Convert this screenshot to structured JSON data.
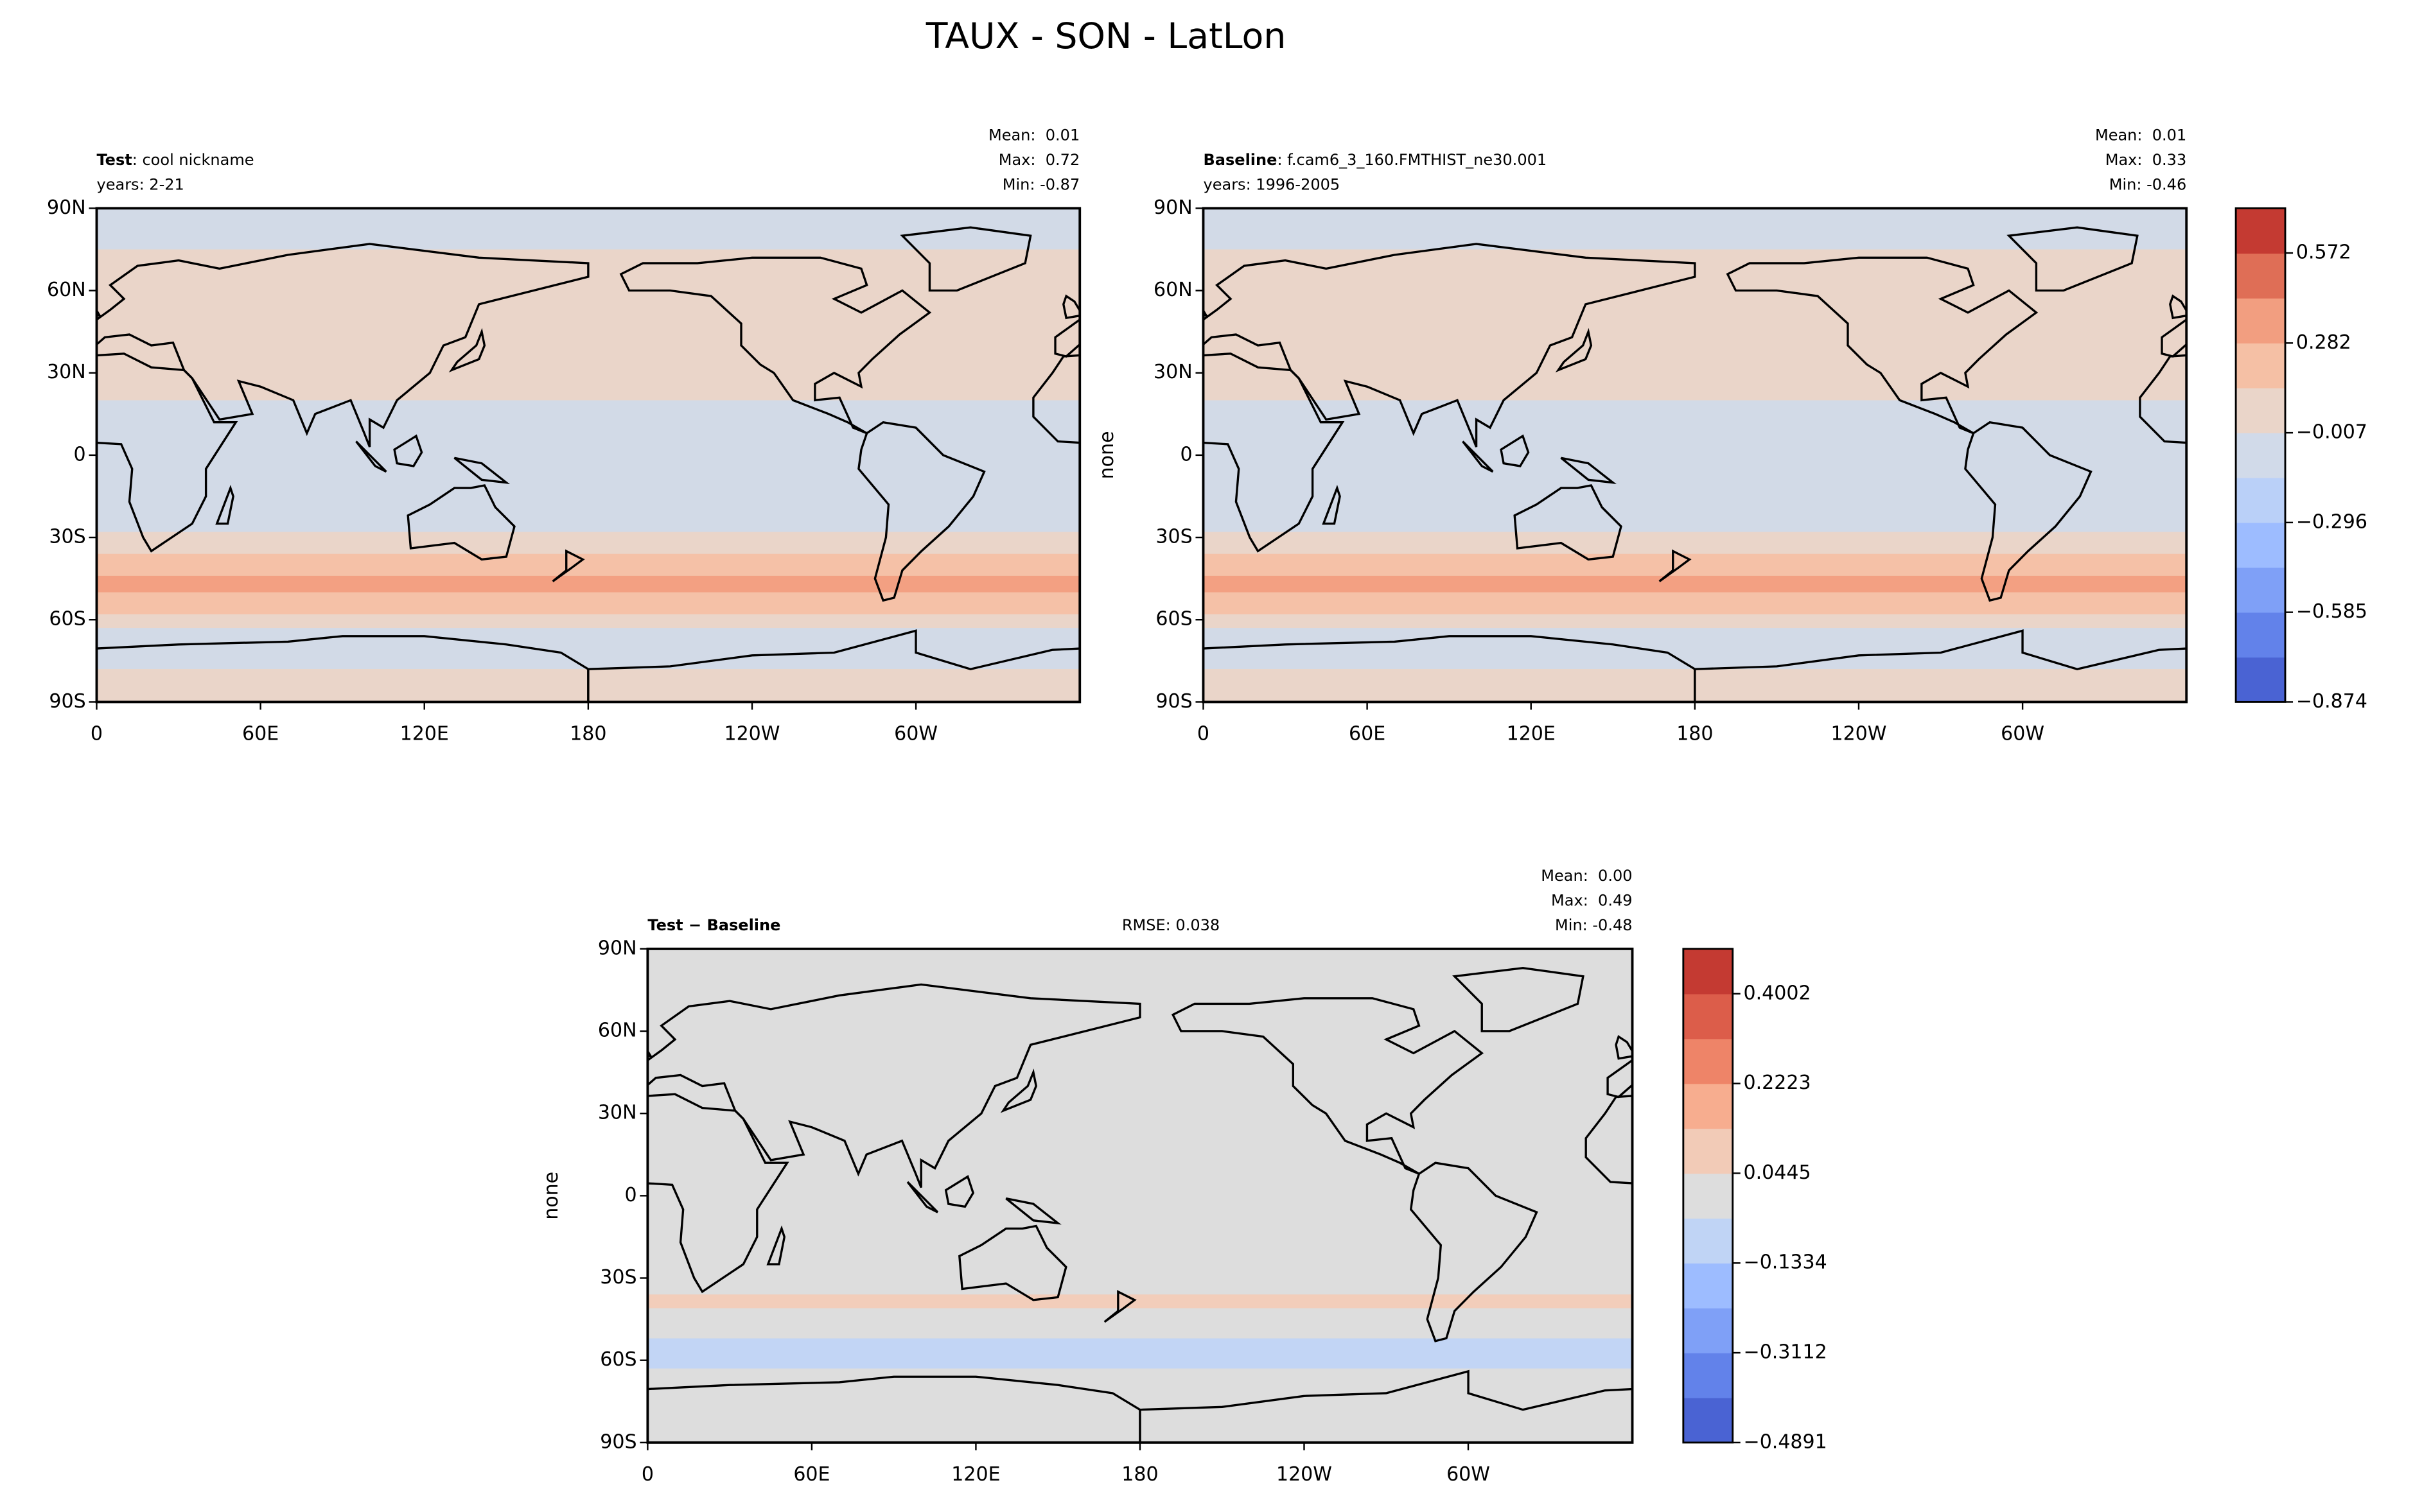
{
  "title": "TAUX - SON - LatLon",
  "chart_data": [
    {
      "type": "map",
      "title": "Test",
      "title_suffix": ": cool nickname",
      "subtitle": "years: 2-21",
      "stats": [
        "Mean:  0.01",
        "Max:  0.72",
        "Min: -0.87"
      ],
      "xlim": [
        0,
        360
      ],
      "ylim": [
        -90,
        90
      ],
      "xticks": [
        0,
        {
          "value": 60,
          "label": "60E"
        },
        {
          "value": 120,
          "label": "120E"
        },
        180,
        {
          "value": 240,
          "label": "120W"
        },
        {
          "value": 300,
          "label": "60W"
        }
      ],
      "yticks": [
        {
          "value": 90,
          "label": "90N"
        },
        {
          "value": 60,
          "label": "60N"
        },
        {
          "value": 30,
          "label": "30N"
        },
        0,
        {
          "value": -30,
          "label": "30S"
        },
        {
          "value": -60,
          "label": "60S"
        },
        {
          "value": -90,
          "label": "90S"
        }
      ]
    },
    {
      "type": "map",
      "title": "Baseline",
      "title_suffix": ": f.cam6_3_160.FMTHIST_ne30.001",
      "subtitle": "years: 1996-2005",
      "stats": [
        "Mean:  0.01",
        "Max:  0.33",
        "Min: -0.46"
      ],
      "ylabel": "none",
      "xlim": [
        0,
        360
      ],
      "ylim": [
        -90,
        90
      ],
      "xticks": [
        0,
        {
          "value": 60,
          "label": "60E"
        },
        {
          "value": 120,
          "label": "120E"
        },
        180,
        {
          "value": 240,
          "label": "120W"
        },
        {
          "value": 300,
          "label": "60W"
        }
      ],
      "yticks": [
        {
          "value": 90,
          "label": "90N"
        },
        {
          "value": 60,
          "label": "60N"
        },
        {
          "value": 30,
          "label": "30N"
        },
        0,
        {
          "value": -30,
          "label": "30S"
        },
        {
          "value": -60,
          "label": "60S"
        },
        {
          "value": -90,
          "label": "90S"
        }
      ],
      "colorbar": {
        "lim": [
          -0.874,
          0.716
        ],
        "ticks": [
          0.572,
          0.282,
          {
            "value": -0.007,
            "label": "−0.007"
          },
          {
            "value": -0.296,
            "label": "−0.296"
          },
          {
            "value": -0.585,
            "label": "−0.585"
          },
          {
            "value": -0.874,
            "label": "−0.874"
          }
        ],
        "colors": [
          "#4a63d3",
          "#6282ea",
          "#7fa0f7",
          "#9dbcff",
          "#bad0f8",
          "#d1dae9",
          "#ead5c9",
          "#f5c0a5",
          "#f29e80",
          "#df6e56",
          "#c43a32"
        ]
      }
    },
    {
      "type": "map",
      "title": "Test − Baseline",
      "annotation": "RMSE: 0.038",
      "stats": [
        "Mean:  0.00",
        "Max:  0.49",
        "Min: -0.48"
      ],
      "ylabel": "none",
      "xlim": [
        0,
        360
      ],
      "ylim": [
        -90,
        90
      ],
      "xticks": [
        0,
        {
          "value": 60,
          "label": "60E"
        },
        {
          "value": 120,
          "label": "120E"
        },
        180,
        {
          "value": 240,
          "label": "120W"
        },
        {
          "value": 300,
          "label": "60W"
        }
      ],
      "yticks": [
        {
          "value": 90,
          "label": "90N"
        },
        {
          "value": 60,
          "label": "60N"
        },
        {
          "value": 30,
          "label": "30N"
        },
        0,
        {
          "value": -30,
          "label": "30S"
        },
        {
          "value": -60,
          "label": "60S"
        },
        {
          "value": -90,
          "label": "90S"
        }
      ],
      "colorbar": {
        "lim": [
          -0.4891,
          0.4891
        ],
        "ticks": [
          0.4002,
          0.2223,
          0.0445,
          {
            "value": -0.1334,
            "label": "−0.1334"
          },
          {
            "value": -0.3112,
            "label": "−0.3112"
          },
          {
            "value": -0.4891,
            "label": "−0.4891"
          }
        ],
        "colors": [
          "#4a63d3",
          "#6282ea",
          "#7fa0f7",
          "#9dbcff",
          "#c0d4f5",
          "#dddddd",
          "#f2cbb7",
          "#f7ad8f",
          "#ee8468",
          "#dc5d4a",
          "#c43a32"
        ]
      }
    }
  ]
}
